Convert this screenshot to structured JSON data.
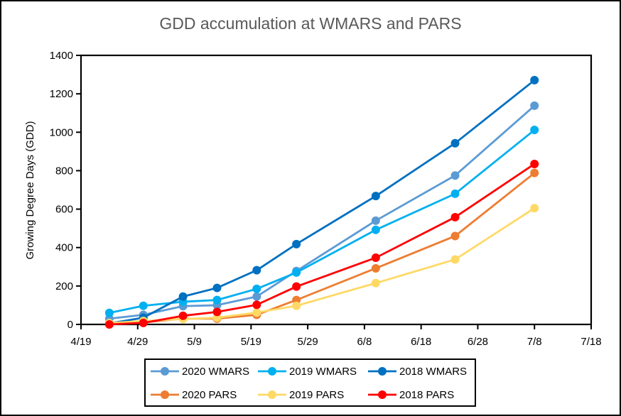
{
  "chart_data": {
    "type": "line",
    "title": "GDD accumulation at WMARS and PARS",
    "xlabel": "",
    "ylabel": "Growing Degree Days (GDD)",
    "x_axis": {
      "type": "date",
      "range": [
        "4/19",
        "7/18"
      ],
      "tick_labels": [
        "4/19",
        "4/29",
        "5/9",
        "5/19",
        "5/29",
        "6/8",
        "6/18",
        "6/28",
        "7/8",
        "7/18"
      ]
    },
    "y_axis": {
      "range": [
        0,
        1400
      ],
      "tick_labels": [
        "0",
        "200",
        "400",
        "600",
        "800",
        "1000",
        "1200",
        "1400"
      ],
      "ticks": [
        0,
        200,
        400,
        600,
        800,
        1000,
        1200,
        1400
      ]
    },
    "grid": false,
    "legend_position": "bottom",
    "x": [
      "4/24",
      "4/30",
      "5/7",
      "5/13",
      "5/20",
      "5/27",
      "6/10",
      "6/24",
      "7/8"
    ],
    "series": [
      {
        "name": "2020 WMARS",
        "color": "#5b9bd5",
        "values": [
          30,
          50,
          95,
          100,
          145,
          278,
          540,
          775,
          1138
        ]
      },
      {
        "name": "2019 WMARS",
        "color": "#00b0f0",
        "values": [
          60,
          97,
          118,
          127,
          185,
          270,
          492,
          680,
          1012
        ]
      },
      {
        "name": "2018 WMARS",
        "color": "#0070c0",
        "values": [
          5,
          35,
          145,
          190,
          282,
          418,
          668,
          943,
          1271
        ]
      },
      {
        "name": "2020 PARS",
        "color": "#ed7d31",
        "values": [
          3,
          10,
          30,
          30,
          50,
          127,
          292,
          460,
          788
        ]
      },
      {
        "name": "2019 PARS",
        "color": "#ffd966",
        "values": [
          7,
          18,
          28,
          35,
          62,
          97,
          215,
          338,
          605
        ]
      },
      {
        "name": "2018 PARS",
        "color": "#ff0000",
        "values": [
          0,
          8,
          45,
          65,
          102,
          197,
          347,
          558,
          835
        ]
      }
    ]
  }
}
